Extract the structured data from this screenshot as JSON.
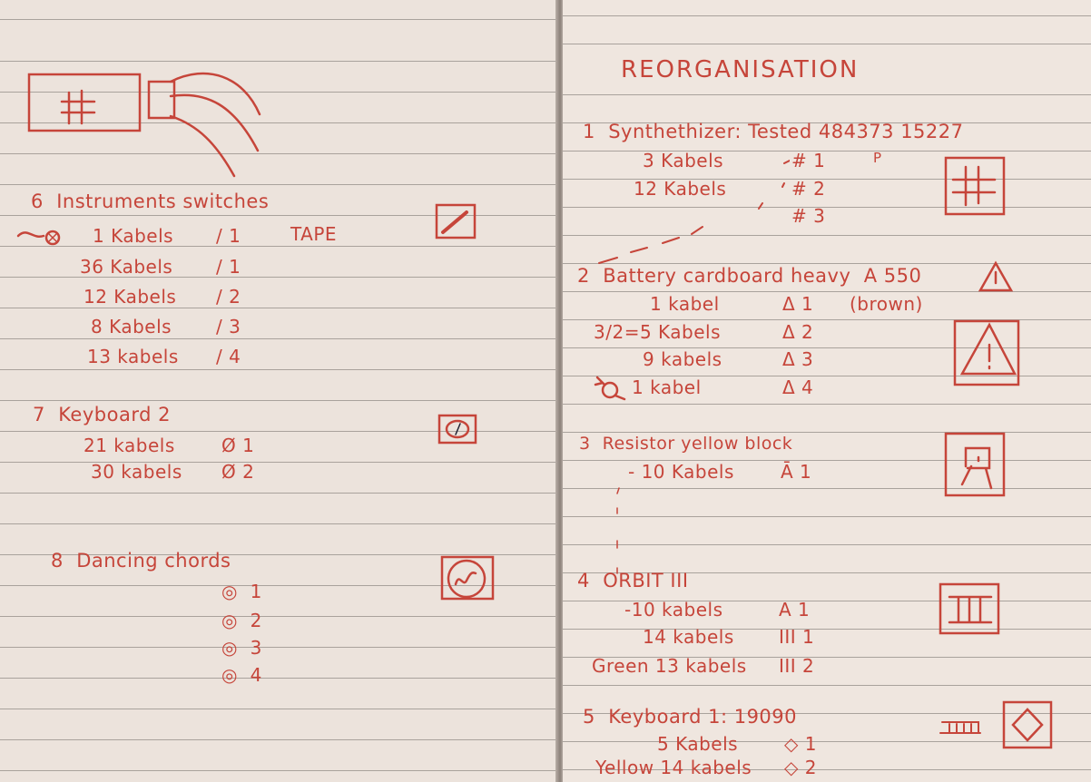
{
  "left_page": {
    "section6": {
      "heading": "6  Instruments switches",
      "rows": [
        {
          "cables": "1 Kabels",
          "label": "/ 1",
          "note": "TAPE"
        },
        {
          "cables": "36 Kabels",
          "label": "/ 1"
        },
        {
          "cables": "12 Kabels",
          "label": "/ 2"
        },
        {
          "cables": "8 Kabels",
          "label": "/ 3"
        },
        {
          "cables": "13 kabels",
          "label": "/ 4"
        }
      ]
    },
    "section7": {
      "heading": "7  Keyboard 2",
      "rows": [
        {
          "cables": "21 kabels",
          "label": "Ø 1"
        },
        {
          "cables": "30 kabels",
          "label": "Ø 2"
        }
      ]
    },
    "section8": {
      "heading": "8  Dancing chords",
      "rows": [
        {
          "label": "1"
        },
        {
          "label": "2"
        },
        {
          "label": "3"
        },
        {
          "label": "4"
        }
      ]
    }
  },
  "right_page": {
    "title": "REORGANISATION",
    "section1": {
      "heading": "1  Synthethizer: Tested 484373 15227",
      "rows": [
        {
          "cables": "3 Kabels",
          "label": "# 1",
          "note": "P"
        },
        {
          "cables": "12 Kabels",
          "label": "# 2"
        },
        {
          "cables": "",
          "label": "# 3"
        }
      ]
    },
    "section2": {
      "heading": "2  Battery cardboard heavy  A 550",
      "rows": [
        {
          "cables": "1 kabel",
          "label": "Δ 1",
          "note": "(brown)"
        },
        {
          "cables": "3/2=5 Kabels",
          "label": "Δ 2"
        },
        {
          "cables": "9 kabels",
          "label": "Δ 3"
        },
        {
          "cables": "1 kabel",
          "label": "Δ 4"
        }
      ]
    },
    "section3": {
      "heading": "3  Resistor yellow block",
      "rows": [
        {
          "cables": "10 Kabels",
          "label": "Ā 1"
        }
      ]
    },
    "section4": {
      "heading": "4  ORBIT III",
      "rows": [
        {
          "cables": "10 kabels",
          "label": "A 1"
        },
        {
          "cables": "14 kabels",
          "label": "III 1"
        },
        {
          "cables": "Green 13 kabels",
          "label": "III 2"
        }
      ]
    },
    "section5": {
      "heading": "5  Keyboard 1: 19090",
      "rows": [
        {
          "cables": "5 Kabels",
          "label": "◇ 1"
        },
        {
          "cables": "Yellow 14 kabels",
          "label": "◇ 2"
        }
      ]
    }
  },
  "colors": {
    "ink": "#c6453a",
    "paper": "#ece3dc",
    "rule": "#a9a29c"
  }
}
